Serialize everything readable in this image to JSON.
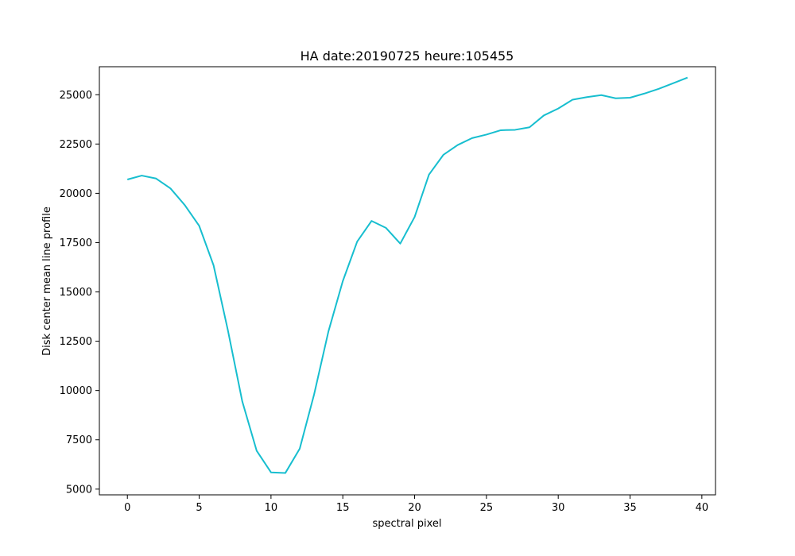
{
  "chart_data": {
    "type": "line",
    "title": "HA date:20190725 heure:105455",
    "xlabel": "spectral pixel",
    "ylabel": "Disk center mean line profile",
    "xlim": [
      -1.95,
      40.95
    ],
    "ylim": [
      4710,
      26420
    ],
    "xticks": [
      0,
      5,
      10,
      15,
      20,
      25,
      30,
      35,
      40
    ],
    "yticks": [
      5000,
      7500,
      10000,
      12500,
      15000,
      17500,
      20000,
      22500,
      25000
    ],
    "grid": false,
    "line_color": "#17becf",
    "series": [
      {
        "x": [
          0,
          1,
          2,
          3,
          4,
          5,
          6,
          7,
          8,
          9,
          10,
          11,
          12,
          13,
          14,
          15,
          16,
          17,
          18,
          19,
          20,
          21,
          22,
          23,
          24,
          25,
          26,
          27,
          28,
          29,
          30,
          31,
          32,
          33,
          34,
          35,
          36,
          37,
          38,
          39
        ],
        "values": [
          20700,
          20900,
          20750,
          20250,
          19400,
          18350,
          16350,
          13050,
          9450,
          6950,
          5850,
          5820,
          7050,
          9800,
          13000,
          15550,
          17550,
          18600,
          18250,
          17450,
          18800,
          20950,
          21950,
          22450,
          22800,
          22980,
          23200,
          23220,
          23350,
          23950,
          24300,
          24750,
          24880,
          24980,
          24820,
          24850,
          25060,
          25300,
          25580,
          25870
        ]
      }
    ]
  }
}
